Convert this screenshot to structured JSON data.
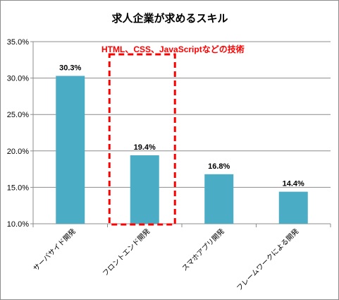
{
  "chart_data": {
    "type": "bar",
    "title": "求人企業が求めるスキル",
    "categories": [
      "サーバサイド開発",
      "フロントエンド開発",
      "スマホアプリ開発",
      "フレームワークによる開発"
    ],
    "values": [
      30.3,
      19.4,
      16.8,
      14.4
    ],
    "value_labels": [
      "30.3%",
      "19.4%",
      "16.8%",
      "14.4%"
    ],
    "ylim": [
      10.0,
      35.0
    ],
    "yticks": [
      10.0,
      15.0,
      20.0,
      25.0,
      30.0,
      35.0
    ],
    "ytick_labels": [
      "10.0%",
      "15.0%",
      "20.0%",
      "25.0%",
      "30.0%",
      "35.0%"
    ],
    "grid": true,
    "bar_color": "#4bacc6",
    "annotation": {
      "text": "HTML、CSS、JavaScriptなどの技術",
      "color": "#ff0000",
      "highlight_category_index": 1
    }
  }
}
